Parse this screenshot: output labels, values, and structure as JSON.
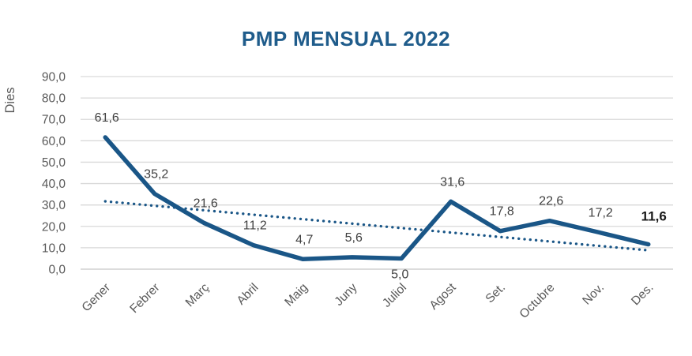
{
  "chart_data": {
    "type": "line",
    "title": "PMP MENSUAL 2022",
    "xlabel": "",
    "ylabel": "Dies",
    "categories": [
      "Gener",
      "Febrer",
      "Març",
      "Abril",
      "Maig",
      "Juny",
      "Juliol",
      "Agost",
      "Set.",
      "Octubre",
      "Nov.",
      "Des."
    ],
    "series": [
      {
        "name": "PMP mensual",
        "values": [
          61.6,
          35.2,
          21.6,
          11.2,
          4.7,
          5.6,
          5.0,
          31.6,
          17.8,
          22.6,
          17.2,
          11.6
        ]
      }
    ],
    "value_labels": [
      "61,6",
      "35,2",
      "21,6",
      "11,2",
      "4,7",
      "5,6",
      "5,0",
      "31,6",
      "17,8",
      "22,6",
      "17,2",
      "11,6"
    ],
    "label_below_indices": [
      6
    ],
    "label_bold_indices": [
      11
    ],
    "trendline": {
      "style": "dotted",
      "start_value": 31.7,
      "end_value": 8.8
    },
    "ylim": [
      0,
      90
    ],
    "ytick_step": 10,
    "ytick_labels": [
      "0,0",
      "10,0",
      "20,0",
      "30,0",
      "40,0",
      "50,0",
      "60,0",
      "70,0",
      "80,0",
      "90,0"
    ],
    "grid": true,
    "legend": false,
    "colors": {
      "title": "#1F5C8B",
      "line": "#1A5687",
      "trendline": "#1A5687",
      "gridline": "#D9D9D9",
      "axis_line": "#C6C6C6",
      "tick_text": "#595959",
      "data_label": "#404040",
      "data_label_bold": "#1A1A1A",
      "background": "#FFFFFF"
    }
  }
}
